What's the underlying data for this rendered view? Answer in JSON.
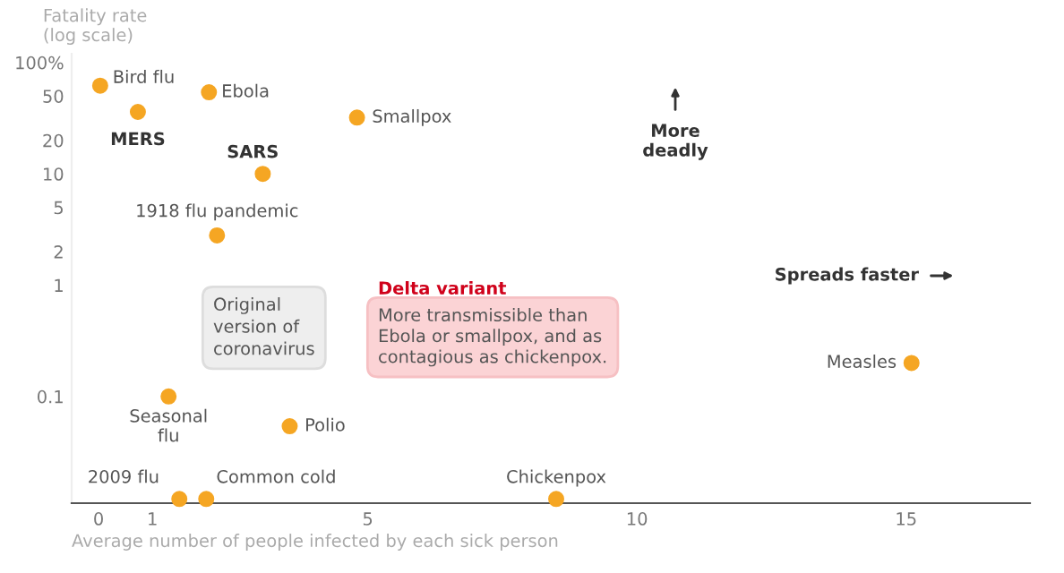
{
  "chart_data": {
    "type": "scatter",
    "ylabel": "Fatality rate\n(log scale)",
    "xlabel": "Average number of people infected by each sick person",
    "x": [
      0.03,
      0.73,
      2.05,
      4.8,
      3.05,
      2.2,
      1.3,
      3.55,
      15.1,
      1.5,
      2.0,
      8.5
    ],
    "series": [
      {
        "color": "#f5a623",
        "values": [
          62,
          36,
          54,
          32,
          10,
          2.8,
          0.1,
          0.054,
          0.2,
          0.012,
          0.012,
          0.012
        ]
      }
    ],
    "log": "y",
    "xlim": [
      -0.5,
      17.3
    ],
    "ylim": [
      0.011,
      120
    ],
    "xticks": [
      0,
      1,
      5,
      10,
      15
    ],
    "yticks": [
      {
        "value": 100,
        "label": "100%"
      },
      50,
      20,
      10,
      5,
      2,
      1,
      0.1
    ],
    "grid": false,
    "marker": "circle",
    "annotations": [
      {
        "text": "Bird flu",
        "x": 0.03,
        "y": 62
      },
      {
        "text": "MERS",
        "x": 0.73,
        "y": 36
      },
      {
        "text": "Ebola",
        "x": 2.05,
        "y": 54
      },
      {
        "text": "Smallpox",
        "x": 4.8,
        "y": 32
      },
      {
        "text": "SARS",
        "x": 3.05,
        "y": 10
      },
      {
        "text": "1918 flu pandemic",
        "x": 2.2,
        "y": 2.8
      },
      {
        "text": "Seasonal\nflu",
        "x": 1.3,
        "y": 0.1
      },
      {
        "text": "Polio",
        "x": 3.55,
        "y": 0.054
      },
      {
        "text": "Measles",
        "x": 15.1,
        "y": 0.2
      },
      {
        "text": "2009 flu",
        "x": 1.5,
        "y": 0.012
      },
      {
        "text": "Common cold",
        "x": 2.0,
        "y": 0.012
      },
      {
        "text": "Chickenpox",
        "x": 8.5,
        "y": 0.012
      },
      "Original\nversion of\ncoronavirus",
      "Delta variant",
      "More transmissible than\nEbola or smallpox, and as\ncontagious as chickenpox.",
      "More\ndeadly",
      "Spreads faster"
    ]
  }
}
